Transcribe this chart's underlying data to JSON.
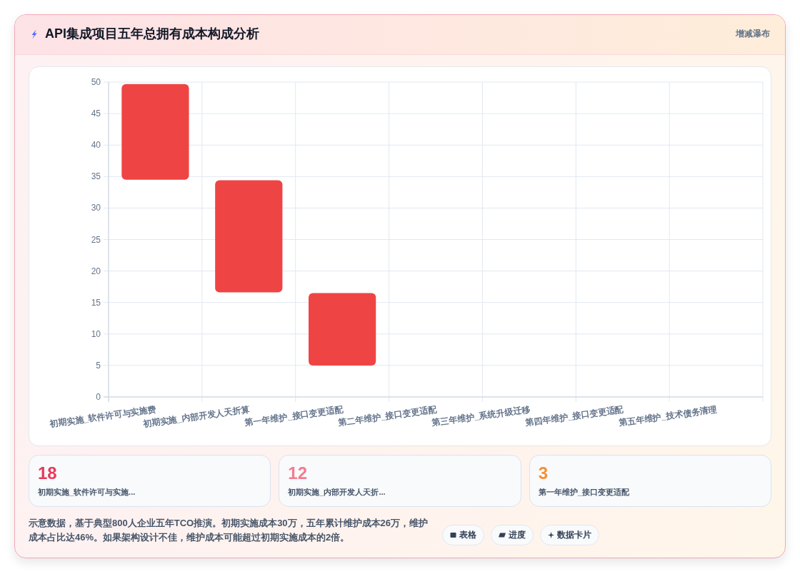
{
  "chart_data": [
    {
      "type": "bar",
      "title": "API集成项目五年总拥有成本构成分析",
      "subtitle": "增减瀑布",
      "categories": [
        "初期实施_软件许可与实施费",
        "初期实施_内部开发人天折算",
        "第一年维护_接口变更适配",
        "第二年维护_接口变更适配",
        "第三年维护_系统升级迁移",
        "第四年维护_接口变更适配",
        "第五年维护_技术债务清理"
      ],
      "values": [
        15.2,
        17.8,
        11.5,
        null,
        null,
        null,
        null
      ],
      "base": [
        34.5,
        16.6,
        5,
        null,
        null,
        null,
        null
      ],
      "color": "#ef4444",
      "ylim": [
        0,
        50
      ],
      "yticks": [
        0,
        5,
        10,
        15,
        20,
        25,
        30,
        35,
        40,
        45,
        50
      ],
      "grid": true,
      "annotations": [
        "示意数据，基于典型800人企业五年TCO推演。初期实施成本30万，五年累计维护成本26万，维护成本占比达46%。如果架构设计不佳，维护成本可能超过初期实施成本的2倍。",
        "表格",
        "进度",
        "数据卡片"
      ]
    },
    {
      "type": "other",
      "categories": [
        "初期实施_软件许可与实施...",
        "初期实施_内部开发人天折...",
        "第一年维护_接口变更适配"
      ],
      "values": [
        18,
        12,
        3
      ],
      "data_labels": true
    }
  ]
}
